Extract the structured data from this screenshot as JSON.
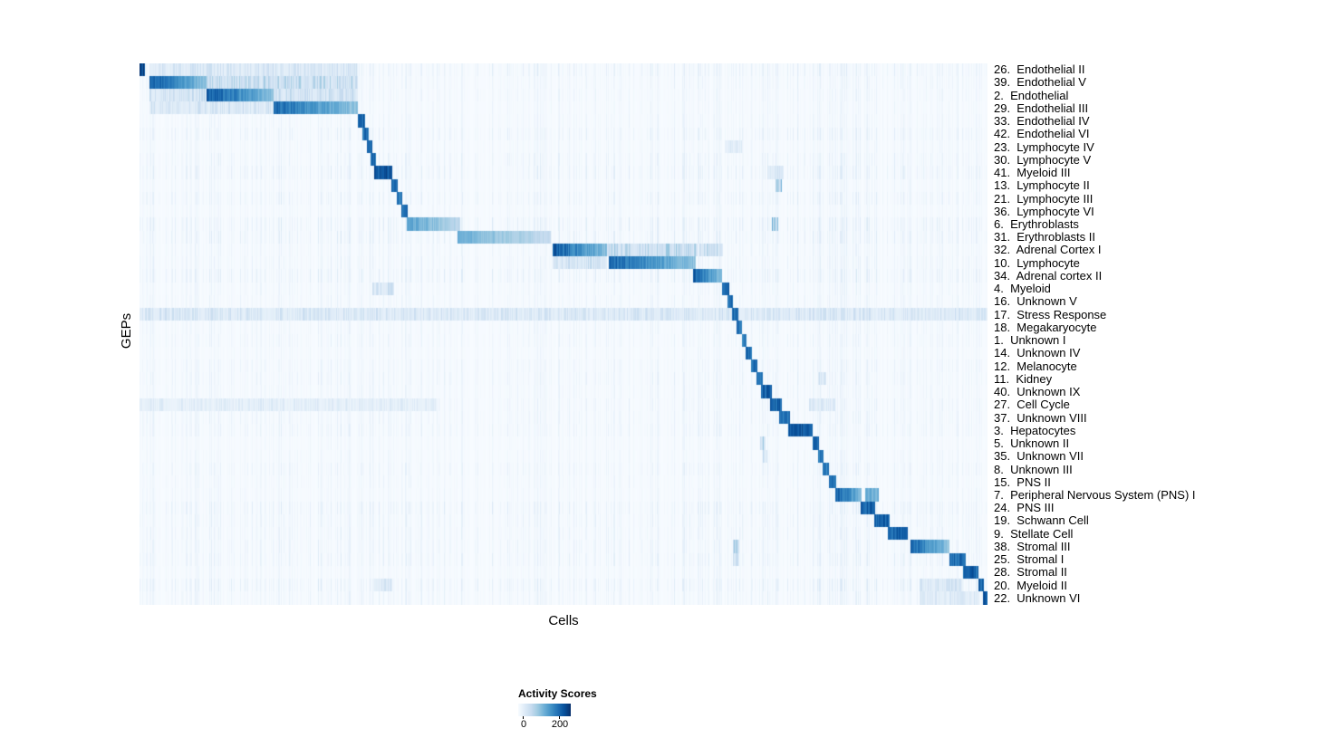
{
  "chart_data": {
    "type": "heatmap",
    "title": "",
    "xlabel": "Cells",
    "ylabel": "GEPs",
    "x_axis": {
      "tick_labels": [],
      "description": "individual cells, grouped by GEP usage"
    },
    "colorbar": {
      "label": "Activity Scores",
      "tick_labels": [
        "0",
        "200"
      ],
      "tick_values": [
        0,
        200
      ]
    },
    "colormap": [
      "#f7fbff",
      "#deebf7",
      "#c6dbef",
      "#9ecae1",
      "#6baed6",
      "#4292c6",
      "#2171b5",
      "#08519c",
      "#08306b"
    ],
    "noise": 0.13,
    "n_rows": 42,
    "rows": [
      {
        "label": "26.  Endothelial II",
        "blocks": [
          [
            0.0,
            0.0064,
            1.0
          ]
        ],
        "bands": [
          [
            0.012,
            0.257,
            0.24
          ]
        ]
      },
      {
        "label": "39.  Endothelial V",
        "blocks": [
          [
            0.012,
            0.079,
            0.92
          ]
        ],
        "bands": [
          [
            0.079,
            0.257,
            0.38
          ]
        ]
      },
      {
        "label": "2.  Endothelial",
        "blocks": [
          [
            0.079,
            0.158,
            0.95
          ]
        ],
        "bands": [
          [
            0.012,
            0.079,
            0.3
          ],
          [
            0.158,
            0.257,
            0.3
          ]
        ]
      },
      {
        "label": "29.  Endothelial III",
        "blocks": [
          [
            0.158,
            0.257,
            0.88
          ]
        ],
        "bands": [
          [
            0.012,
            0.158,
            0.25
          ]
        ]
      },
      {
        "label": "33.  Endothelial IV",
        "blocks": [
          [
            0.257,
            0.2655,
            0.9
          ]
        ],
        "bands": []
      },
      {
        "label": "42.  Endothelial VI",
        "blocks": [
          [
            0.263,
            0.27,
            0.85
          ]
        ],
        "bands": []
      },
      {
        "label": "23.  Lymphocyte IV",
        "blocks": [
          [
            0.268,
            0.2745,
            0.85
          ]
        ],
        "bands": [
          [
            0.69,
            0.71,
            0.2
          ]
        ]
      },
      {
        "label": "30.  Lymphocyte V",
        "blocks": [
          [
            0.272,
            0.279,
            0.85
          ]
        ],
        "bands": []
      },
      {
        "label": "41.  Myeloid III",
        "blocks": [
          [
            0.277,
            0.298,
            0.95
          ]
        ],
        "bands": [
          [
            0.74,
            0.76,
            0.25
          ]
        ]
      },
      {
        "label": "13.  Lymphocyte II",
        "blocks": [
          [
            0.297,
            0.304,
            0.85
          ]
        ],
        "bands": [
          [
            0.75,
            0.757,
            0.5
          ]
        ]
      },
      {
        "label": "21.  Lymphocyte III",
        "blocks": [
          [
            0.303,
            0.31,
            0.85
          ]
        ],
        "bands": []
      },
      {
        "label": "36.  Lymphocyte VI",
        "blocks": [
          [
            0.309,
            0.316,
            0.85
          ]
        ],
        "bands": []
      },
      {
        "label": "6.  Erythroblasts",
        "blocks": [
          [
            0.315,
            0.378,
            0.62
          ]
        ],
        "bands": [
          [
            0.746,
            0.753,
            0.6
          ]
        ]
      },
      {
        "label": "31.  Erythroblasts II",
        "blocks": [
          [
            0.375,
            0.485,
            0.55
          ]
        ],
        "bands": []
      },
      {
        "label": "32.  Adrenal Cortex I",
        "blocks": [
          [
            0.487,
            0.551,
            0.95
          ]
        ],
        "bands": [
          [
            0.551,
            0.658,
            0.4
          ],
          [
            0.66,
            0.688,
            0.32
          ]
        ]
      },
      {
        "label": "10.  Lymphocyte",
        "blocks": [
          [
            0.553,
            0.656,
            0.9
          ]
        ],
        "bands": [
          [
            0.487,
            0.551,
            0.3
          ]
        ]
      },
      {
        "label": "34.  Adrenal cortex II",
        "blocks": [
          [
            0.653,
            0.687,
            0.92
          ]
        ],
        "bands": []
      },
      {
        "label": "4.  Myeloid",
        "blocks": [
          [
            0.687,
            0.695,
            0.9
          ]
        ],
        "bands": [
          [
            0.275,
            0.3,
            0.28
          ]
        ]
      },
      {
        "label": "16.  Unknown V",
        "blocks": [
          [
            0.693,
            0.7,
            0.85
          ]
        ],
        "bands": []
      },
      {
        "label": "17.  Stress Response",
        "blocks": [
          [
            0.699,
            0.706,
            0.9
          ]
        ],
        "bands": [
          [
            0.0,
            1.0,
            0.24
          ]
        ]
      },
      {
        "label": "18.  Megakaryocyte",
        "blocks": [
          [
            0.704,
            0.711,
            0.85
          ]
        ],
        "bands": []
      },
      {
        "label": "1.  Unknown I",
        "blocks": [
          [
            0.71,
            0.716,
            0.8
          ]
        ],
        "bands": []
      },
      {
        "label": "14.  Unknown IV",
        "blocks": [
          [
            0.715,
            0.722,
            0.85
          ]
        ],
        "bands": []
      },
      {
        "label": "12.  Melanocyte",
        "blocks": [
          [
            0.721,
            0.729,
            0.85
          ]
        ],
        "bands": []
      },
      {
        "label": "11.  Kidney",
        "blocks": [
          [
            0.728,
            0.735,
            0.85
          ]
        ],
        "bands": [
          [
            0.8,
            0.81,
            0.3
          ]
        ]
      },
      {
        "label": "40.  Unknown IX",
        "blocks": [
          [
            0.733,
            0.746,
            0.9
          ]
        ],
        "bands": []
      },
      {
        "label": "27.  Cell Cycle",
        "blocks": [
          [
            0.744,
            0.757,
            0.9
          ]
        ],
        "bands": [
          [
            0.0,
            0.35,
            0.16
          ],
          [
            0.79,
            0.82,
            0.2
          ]
        ]
      },
      {
        "label": "37.  Unknown VIII",
        "blocks": [
          [
            0.754,
            0.767,
            0.85
          ]
        ],
        "bands": []
      },
      {
        "label": "3.  Hepatocytes",
        "blocks": [
          [
            0.765,
            0.794,
            0.95
          ]
        ],
        "bands": []
      },
      {
        "label": "5.  Unknown II",
        "blocks": [
          [
            0.794,
            0.801,
            0.85
          ]
        ],
        "bands": [
          [
            0.732,
            0.738,
            0.4
          ]
        ]
      },
      {
        "label": "35.  Unknown VII",
        "blocks": [
          [
            0.8,
            0.807,
            0.8
          ]
        ],
        "bands": [
          [
            0.735,
            0.74,
            0.3
          ]
        ]
      },
      {
        "label": "8.  Unknown III",
        "blocks": [
          [
            0.806,
            0.813,
            0.8
          ]
        ],
        "bands": []
      },
      {
        "label": "15.  PNS II",
        "blocks": [
          [
            0.813,
            0.822,
            0.85
          ]
        ],
        "bands": []
      },
      {
        "label": "7.  Peripheral Nervous System (PNS) I",
        "blocks": [
          [
            0.82,
            0.852,
            0.95
          ],
          [
            0.856,
            0.872,
            0.55
          ]
        ],
        "bands": []
      },
      {
        "label": "24.  PNS III",
        "blocks": [
          [
            0.85,
            0.868,
            0.9
          ]
        ],
        "bands": []
      },
      {
        "label": "19.  Schwann Cell",
        "blocks": [
          [
            0.866,
            0.885,
            0.9
          ]
        ],
        "bands": []
      },
      {
        "label": "9.  Stellate Cell",
        "blocks": [
          [
            0.883,
            0.906,
            0.9
          ]
        ],
        "bands": []
      },
      {
        "label": "38.  Stromal III",
        "blocks": [
          [
            0.909,
            0.955,
            0.9
          ]
        ],
        "bands": [
          [
            0.7,
            0.707,
            0.45
          ]
        ]
      },
      {
        "label": "25.  Stromal I",
        "blocks": [
          [
            0.955,
            0.974,
            0.85
          ]
        ],
        "bands": [
          [
            0.7,
            0.707,
            0.3
          ]
        ]
      },
      {
        "label": "28.  Stromal II",
        "blocks": [
          [
            0.971,
            0.989,
            0.9
          ]
        ],
        "bands": []
      },
      {
        "label": "20.  Myeloid II",
        "blocks": [
          [
            0.989,
            0.996,
            0.9
          ]
        ],
        "bands": [
          [
            0.277,
            0.298,
            0.25
          ],
          [
            0.92,
            0.97,
            0.25
          ]
        ]
      },
      {
        "label": "22.  Unknown VI",
        "blocks": [
          [
            0.995,
            1.0,
            0.9
          ]
        ],
        "bands": [
          [
            0.92,
            0.99,
            0.2
          ]
        ]
      }
    ]
  }
}
